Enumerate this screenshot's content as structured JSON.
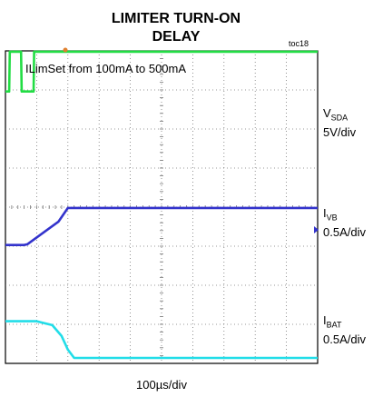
{
  "chart_data": {
    "type": "line",
    "title_line1": "LIMITER TURN-ON",
    "title_line2": "DELAY",
    "figure_id": "toc18",
    "annotation": "ILimSet from 100mA to 500mA",
    "timebase": "100µs/div",
    "x_divisions": 10,
    "y_divisions": 8,
    "grid": true,
    "channels": [
      {
        "name_main": "V",
        "name_sub": "SDA",
        "scale": "5V/div",
        "color": "#22dd44",
        "t": [
          0,
          0.12,
          0.14,
          0.5,
          0.52,
          0.9,
          0.92,
          1.15,
          1.17,
          10
        ],
        "y_div": [
          2.96,
          2.96,
          3.98,
          3.98,
          2.96,
          2.96,
          3.98,
          3.98,
          3.98,
          3.98
        ]
      },
      {
        "name_main": "I",
        "name_sub": "VB",
        "scale": "0.5A/div",
        "color": "#3333cc",
        "t": [
          0,
          0.6,
          0.7,
          1.7,
          2.0,
          10
        ],
        "y_div": [
          -0.97,
          -0.97,
          -0.95,
          -0.37,
          -0.02,
          -0.02
        ]
      },
      {
        "name_main": "I",
        "name_sub": "BAT",
        "scale": "0.5A/div",
        "color": "#22dde8",
        "t": [
          0,
          1.0,
          1.5,
          1.8,
          2.0,
          2.2,
          10
        ],
        "y_div": [
          -2.92,
          -2.92,
          -3.02,
          -3.3,
          -3.65,
          -3.86,
          -3.86
        ]
      }
    ]
  }
}
